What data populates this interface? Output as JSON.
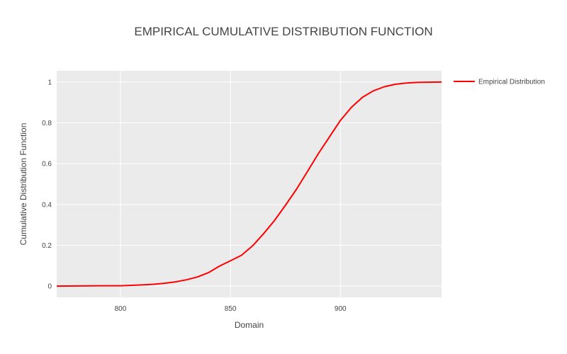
{
  "chart_data": {
    "type": "line",
    "title": "EMPIRICAL CUMULATIVE DISTRIBUTION FUNCTION",
    "xlabel": "Domain",
    "ylabel": "Cumulative Distribution Function",
    "xlim": [
      771,
      946
    ],
    "ylim": [
      -0.055,
      1.055
    ],
    "x_ticks": [
      800,
      850,
      900
    ],
    "y_ticks": [
      0,
      0.2,
      0.4,
      0.6,
      0.8,
      1
    ],
    "grid": true,
    "legend_position": "top-right",
    "colors": {
      "plot_background": "#ebebeb",
      "grid": "#ffffff",
      "series": "#ff0000"
    },
    "series": [
      {
        "name": "Empirical Distribution",
        "x": [
          771,
          780,
          790,
          800,
          805,
          810,
          815,
          820,
          825,
          830,
          835,
          840,
          845,
          850,
          855,
          860,
          865,
          870,
          875,
          880,
          885,
          890,
          895,
          900,
          905,
          910,
          915,
          920,
          925,
          930,
          935,
          940,
          946
        ],
        "y": [
          0,
          0.001,
          0.002,
          0.002,
          0.004,
          0.006,
          0.009,
          0.014,
          0.021,
          0.031,
          0.045,
          0.066,
          0.098,
          0.124,
          0.151,
          0.197,
          0.256,
          0.321,
          0.396,
          0.474,
          0.561,
          0.649,
          0.731,
          0.812,
          0.876,
          0.925,
          0.957,
          0.977,
          0.989,
          0.995,
          0.998,
          0.999,
          1.0
        ]
      }
    ]
  }
}
